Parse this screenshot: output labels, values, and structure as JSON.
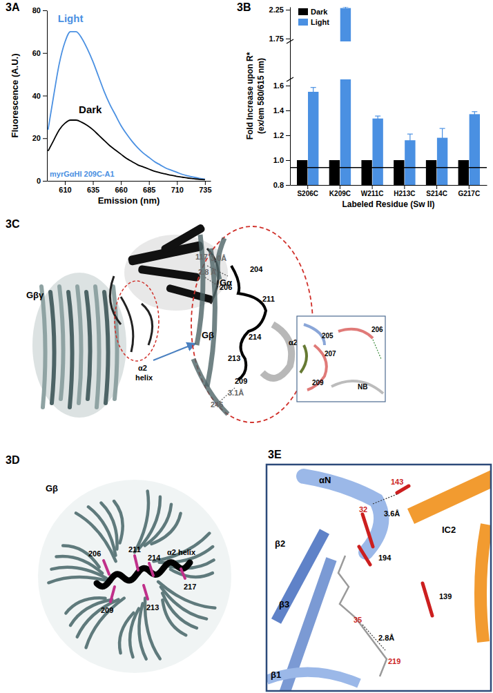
{
  "chart_data": [
    {
      "type": "line",
      "title": "3A",
      "x_label": "Emission (nm)",
      "y_label": "Fluorescence (A.U.)",
      "x": [
        595,
        600,
        605,
        610,
        615,
        620,
        625,
        630,
        635,
        640,
        645,
        650,
        655,
        660,
        665,
        670,
        675,
        680,
        685,
        690,
        695,
        700,
        705,
        710,
        715,
        720,
        725,
        730,
        735
      ],
      "series": [
        {
          "name": "Light",
          "color": "#4a90e2",
          "values": [
            24,
            40,
            55,
            65,
            70,
            70,
            67,
            62,
            56,
            49,
            42,
            36,
            31,
            26,
            22,
            18.5,
            15.5,
            13,
            11,
            9,
            7.5,
            6,
            5,
            4,
            3,
            2.3,
            1.7,
            1.2,
            0.8
          ]
        },
        {
          "name": "Dark",
          "color": "#000000",
          "values": [
            14,
            19,
            24,
            27,
            28.5,
            28.5,
            27.5,
            26,
            24,
            21.5,
            19,
            16.5,
            14.5,
            12.5,
            10.5,
            9,
            7.5,
            6.5,
            5.5,
            4.5,
            3.8,
            3.2,
            2.6,
            2.1,
            1.7,
            1.3,
            1,
            0.7,
            0.5
          ]
        }
      ],
      "xlim": [
        594,
        740
      ],
      "xticks": [
        610,
        635,
        660,
        685,
        710,
        735
      ],
      "ylim": [
        0,
        80
      ],
      "yticks": [
        0,
        20,
        40,
        60,
        80
      ],
      "annotations": [
        {
          "text": "myrGαHI 209C-A1",
          "color": "#4a90e2"
        }
      ]
    },
    {
      "type": "bar",
      "title": "3B",
      "x_label": "Labeled Residue (Sw II)",
      "y_label": [
        "Fold Increase upon R*",
        "(ex/em 580/615 nm)"
      ],
      "categories": [
        "S206C",
        "K209C",
        "W211C",
        "H213C",
        "S214C",
        "G217C"
      ],
      "series": [
        {
          "name": "Dark",
          "color": "#000000",
          "values": [
            1,
            1,
            1,
            1,
            1,
            1
          ]
        },
        {
          "name": "Light",
          "color": "#4a90e2",
          "values": [
            1.55,
            2.28,
            1.335,
            1.16,
            1.18,
            1.37
          ],
          "errors": [
            0.035,
            0.02,
            0.02,
            0.05,
            0.075,
            0.02
          ]
        }
      ],
      "ylim": [
        0.8,
        2.3
      ],
      "axis_break": [
        1.65,
        1.7
      ],
      "yticks": [
        0.8,
        {
          "value": 1,
          "label": "1.0"
        },
        1.2,
        1.4,
        1.6,
        1.75,
        2.25
      ],
      "reference_line": 0.94,
      "legend": "top-left"
    }
  ],
  "diagrams": [
    {
      "panel": "3C",
      "labels": [
        "Gα",
        "Gβγ",
        "α2",
        "helix",
        {
          "text": "117",
          "color": "#666666"
        },
        {
          "text": "3.0Å",
          "color": "#666666"
        },
        {
          "text": "2.8 Å",
          "color": "#666666"
        },
        "204",
        "206",
        "211",
        "214",
        "α2",
        "Gβ",
        "213",
        "209",
        {
          "text": "3.1Å",
          "color": "#666666"
        },
        {
          "text": "246",
          "color": "#666666"
        }
      ],
      "inset_labels": [
        "205",
        "206",
        "207",
        "209",
        "NB"
      ]
    },
    {
      "panel": "3D",
      "labels": [
        "Gβ",
        "206",
        "211",
        "214",
        "α2 helix",
        "217",
        "213",
        "209"
      ]
    },
    {
      "panel": "3E",
      "labels": [
        "αN",
        {
          "text": "143",
          "color": "#cc1f1f"
        },
        {
          "text": "32",
          "color": "#cc1f1f"
        },
        "3.6Å",
        "IC2",
        "β2",
        "194",
        "139",
        "β3",
        {
          "text": "35",
          "color": "#cc1f1f"
        },
        "2.8Å",
        {
          "text": "219",
          "color": "#cc1f1f"
        },
        "β1"
      ]
    }
  ]
}
